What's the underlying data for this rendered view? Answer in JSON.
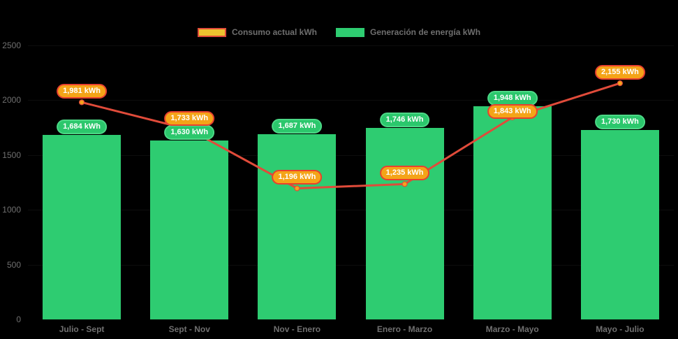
{
  "legend": {
    "consumption": "Consumo actual kWh",
    "generation": "Generación de energía kWh"
  },
  "colors": {
    "background": "#000000",
    "bar": "#2ECC71",
    "line": "#E04B3A",
    "point": "#F5A31C",
    "badge_bar_fill": "#2BC76C",
    "badge_bar_border": "#4CD886",
    "badge_line_fill": "#F4A418",
    "badge_line_border": "#E8402F",
    "axis_text": "#707070"
  },
  "chart_data": {
    "type": "combo-bar-line",
    "categories": [
      "Julio - Sept",
      "Sept - Nov",
      "Nov - Enero",
      "Enero - Marzo",
      "Marzo - Mayo",
      "Mayo - Julio"
    ],
    "series": [
      {
        "name": "Consumo actual kWh",
        "type": "line",
        "values": [
          1981,
          1733,
          1196,
          1235,
          1843,
          2155
        ],
        "labels": [
          "1,981 kWh",
          "1,733 kWh",
          "1,196 kWh",
          "1,235 kWh",
          "1,843 kWh",
          "2,155 kWh"
        ]
      },
      {
        "name": "Generación de energía kWh",
        "type": "bar",
        "values": [
          1684,
          1630,
          1687,
          1746,
          1948,
          1730
        ],
        "labels": [
          "1,684 kWh",
          "1,630 kWh",
          "1,687 kWh",
          "1,746 kWh",
          "1,948 kWh",
          "1,730 kWh"
        ]
      }
    ],
    "ylim": [
      0,
      2500
    ],
    "yticks": [
      0,
      500,
      1000,
      1500,
      2000,
      2500
    ],
    "ylabel": "",
    "xlabel": "",
    "title": "",
    "legend_position": "top-center",
    "grid": "faint-horizontal"
  }
}
